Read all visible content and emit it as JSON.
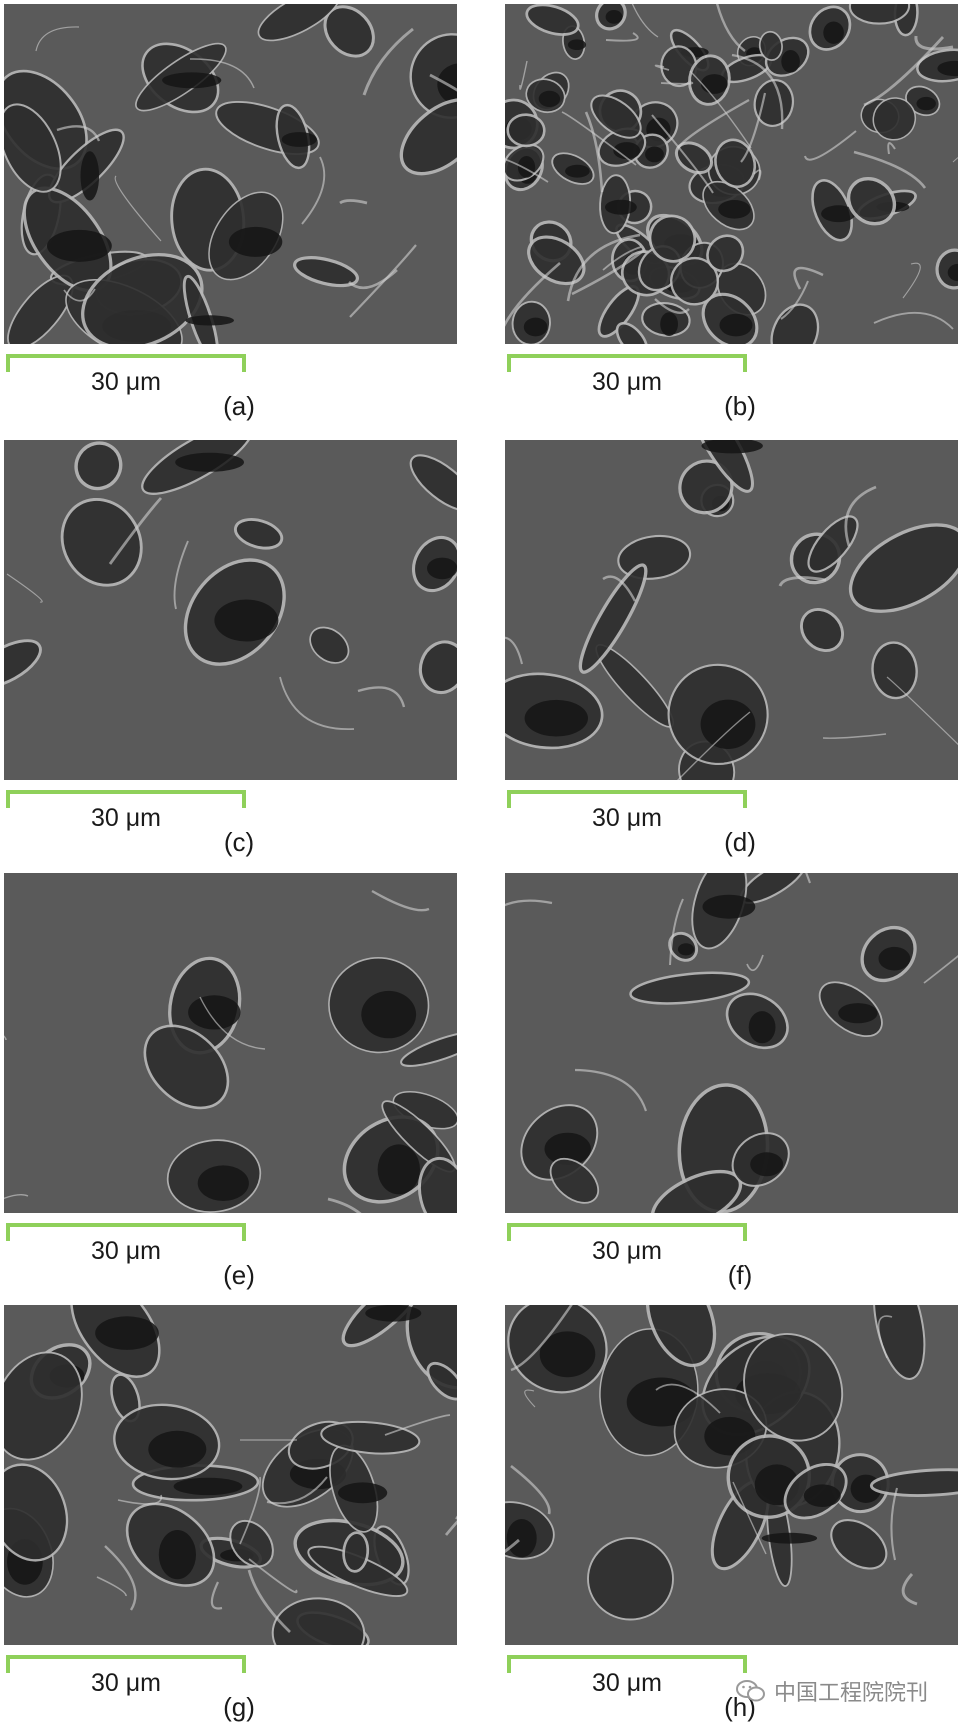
{
  "panels": [
    {
      "letter": "(a)",
      "scale_label": "30 μm"
    },
    {
      "letter": "(b)",
      "scale_label": "30 μm"
    },
    {
      "letter": "(c)",
      "scale_label": "30 μm"
    },
    {
      "letter": "(d)",
      "scale_label": "30 μm"
    },
    {
      "letter": "(e)",
      "scale_label": "30 μm"
    },
    {
      "letter": "(f)",
      "scale_label": "30 μm"
    },
    {
      "letter": "(g)",
      "scale_label": "30 μm"
    },
    {
      "letter": "(h)",
      "scale_label": "30 μm"
    }
  ],
  "scale_bar_color": "#8fd05a",
  "watermark": {
    "text": "中国工程院院刊",
    "icon": "wechat-icon"
  }
}
